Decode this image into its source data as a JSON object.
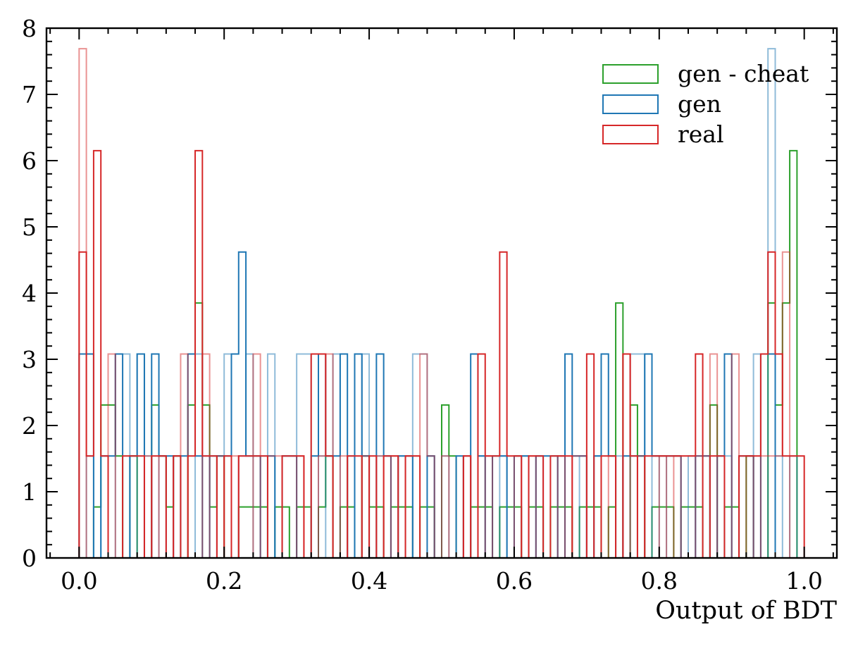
{
  "chart_data": {
    "type": "bar",
    "histtype": "step",
    "xlabel": "Output of BDT",
    "ylabel": "",
    "xlim": [
      -0.045,
      1.045
    ],
    "ylim": [
      0,
      8
    ],
    "xticks": [
      "0.0",
      "0.2",
      "0.4",
      "0.6",
      "0.8",
      "1.0"
    ],
    "yticks": [
      "0",
      "1",
      "2",
      "3",
      "4",
      "5",
      "6",
      "7",
      "8"
    ],
    "grid": false,
    "legend_position": "top-right",
    "bin_range": [
      0,
      1
    ],
    "bins": 100,
    "series": [
      {
        "name": "gen - cheat",
        "color": "#2ca02c",
        "values": [
          0,
          0,
          0.77,
          2.31,
          2.31,
          1.54,
          0,
          1.54,
          0,
          0,
          2.31,
          1.54,
          0.77,
          1.54,
          0,
          2.31,
          3.85,
          2.31,
          0.77,
          1.54,
          0,
          0,
          0.77,
          0.77,
          0.77,
          0.77,
          0,
          0.77,
          0.77,
          0,
          0.77,
          0.77,
          0,
          0.77,
          1.54,
          0,
          0.77,
          0.77,
          0,
          1.54,
          0.77,
          0.77,
          0,
          0.77,
          0.77,
          0.77,
          0,
          0.77,
          0.77,
          0,
          2.31,
          1.54,
          0,
          0,
          0.77,
          0.77,
          0.77,
          0,
          0.77,
          0.77,
          0.77,
          0,
          0.77,
          0.77,
          0,
          0.77,
          0.77,
          0.77,
          0,
          0.77,
          0.77,
          0.77,
          0,
          0.77,
          3.85,
          0,
          2.31,
          1.54,
          0,
          0.77,
          0.77,
          0.77,
          0,
          0.77,
          0.77,
          0.77,
          0,
          2.31,
          0,
          0.77,
          0.77,
          0,
          1.54,
          0,
          0,
          3.85,
          2.31,
          3.85,
          6.15,
          0
        ],
        "opacity": 1
      },
      {
        "name": "gen",
        "color": "#1f77b4",
        "values": [
          3.08,
          3.08,
          0,
          1.54,
          1.54,
          3.08,
          0,
          1.54,
          3.08,
          0,
          3.08,
          1.54,
          1.54,
          0,
          1.54,
          3.08,
          1.54,
          0,
          1.54,
          1.54,
          1.54,
          3.08,
          4.62,
          1.54,
          1.54,
          0,
          1.54,
          0,
          1.54,
          1.54,
          0,
          0,
          1.54,
          3.08,
          1.54,
          1.54,
          3.08,
          0,
          3.08,
          1.54,
          0,
          3.08,
          1.54,
          0,
          1.54,
          1.54,
          0,
          0,
          1.54,
          0,
          0,
          0,
          1.54,
          0,
          3.08,
          1.54,
          0,
          1.54,
          1.54,
          0,
          1.54,
          1.54,
          0,
          1.54,
          1.54,
          1.54,
          0,
          3.08,
          1.54,
          1.54,
          0,
          1.54,
          3.08,
          1.54,
          0,
          1.54,
          1.54,
          1.54,
          3.08,
          1.54,
          1.54,
          1.54,
          1.54,
          0,
          0,
          1.54,
          1.54,
          0,
          1.54,
          3.08,
          0,
          1.54,
          1.54,
          0,
          3.08,
          3.08,
          0,
          0,
          0,
          0
        ],
        "opacity": 1
      },
      {
        "name": "",
        "color": "#1f77b4",
        "values": [
          0,
          1.54,
          0,
          1.54,
          0,
          3.08,
          3.08,
          0,
          3.08,
          1.54,
          0,
          1.54,
          0,
          1.54,
          0,
          0,
          3.08,
          1.54,
          0,
          1.54,
          3.08,
          0,
          1.54,
          3.08,
          0,
          1.54,
          3.08,
          0,
          1.54,
          1.54,
          3.08,
          3.08,
          0,
          1.54,
          0,
          3.08,
          0,
          1.54,
          0,
          3.08,
          0,
          1.54,
          1.54,
          0,
          1.54,
          0,
          3.08,
          3.08,
          1.54,
          0,
          1.54,
          0,
          0,
          1.54,
          0,
          1.54,
          0,
          0,
          1.54,
          0,
          0,
          1.54,
          0,
          1.54,
          0,
          0,
          1.54,
          0,
          0,
          1.54,
          0,
          1.54,
          0,
          0,
          1.54,
          0,
          3.08,
          3.08,
          0,
          1.54,
          0,
          1.54,
          1.54,
          0,
          1.54,
          0,
          1.54,
          0,
          0,
          1.54,
          0,
          0,
          0,
          3.08,
          0,
          7.69,
          1.54,
          0,
          1.54,
          0
        ],
        "opacity": 0.5
      },
      {
        "name": "real",
        "color": "#d62728",
        "values": [
          4.62,
          1.54,
          6.15,
          1.54,
          0,
          0,
          1.54,
          1.54,
          1.54,
          0,
          1.54,
          1.54,
          0,
          1.54,
          0,
          1.54,
          6.15,
          1.54,
          1.54,
          0,
          1.54,
          0,
          1.54,
          1.54,
          1.54,
          1.54,
          0,
          0,
          1.54,
          1.54,
          1.54,
          0,
          3.08,
          3.08,
          1.54,
          0,
          0,
          1.54,
          1.54,
          0,
          1.54,
          0,
          1.54,
          1.54,
          0,
          1.54,
          1.54,
          0,
          0,
          0,
          0,
          0,
          0,
          1.54,
          0,
          3.08,
          1.54,
          1.54,
          4.62,
          1.54,
          1.54,
          0,
          1.54,
          1.54,
          0,
          1.54,
          1.54,
          1.54,
          0,
          0,
          3.08,
          0,
          1.54,
          1.54,
          0,
          3.08,
          1.54,
          0,
          1.54,
          1.54,
          1.54,
          1.54,
          1.54,
          1.54,
          1.54,
          3.08,
          0,
          1.54,
          1.54,
          0,
          0,
          1.54,
          1.54,
          1.54,
          3.08,
          4.62,
          3.08,
          1.54,
          1.54,
          1.54
        ],
        "opacity": 1
      },
      {
        "name": "",
        "color": "#d62728",
        "values": [
          7.69,
          0,
          0,
          0,
          3.08,
          0,
          0,
          0,
          0,
          1.54,
          0,
          1.54,
          0,
          1.54,
          3.08,
          0,
          0,
          3.08,
          0,
          1.54,
          0,
          1.54,
          0,
          0,
          3.08,
          0,
          1.54,
          1.54,
          0,
          0,
          1.54,
          0,
          0,
          1.54,
          3.08,
          0,
          1.54,
          0,
          0,
          1.54,
          0,
          1.54,
          0,
          1.54,
          0,
          1.54,
          1.54,
          3.08,
          1.54,
          0,
          1.54,
          0,
          0,
          1.54,
          0,
          0,
          1.54,
          0,
          0,
          0,
          1.54,
          0,
          1.54,
          0,
          0,
          0,
          1.54,
          0,
          1.54,
          1.54,
          0,
          0,
          0,
          1.54,
          0,
          3.08,
          0,
          1.54,
          0,
          0,
          1.54,
          0,
          1.54,
          0,
          0,
          1.54,
          1.54,
          3.08,
          0,
          0,
          3.08,
          0,
          1.54,
          0,
          1.54,
          1.54,
          1.54,
          4.62,
          0,
          0
        ],
        "opacity": 0.5
      }
    ]
  }
}
